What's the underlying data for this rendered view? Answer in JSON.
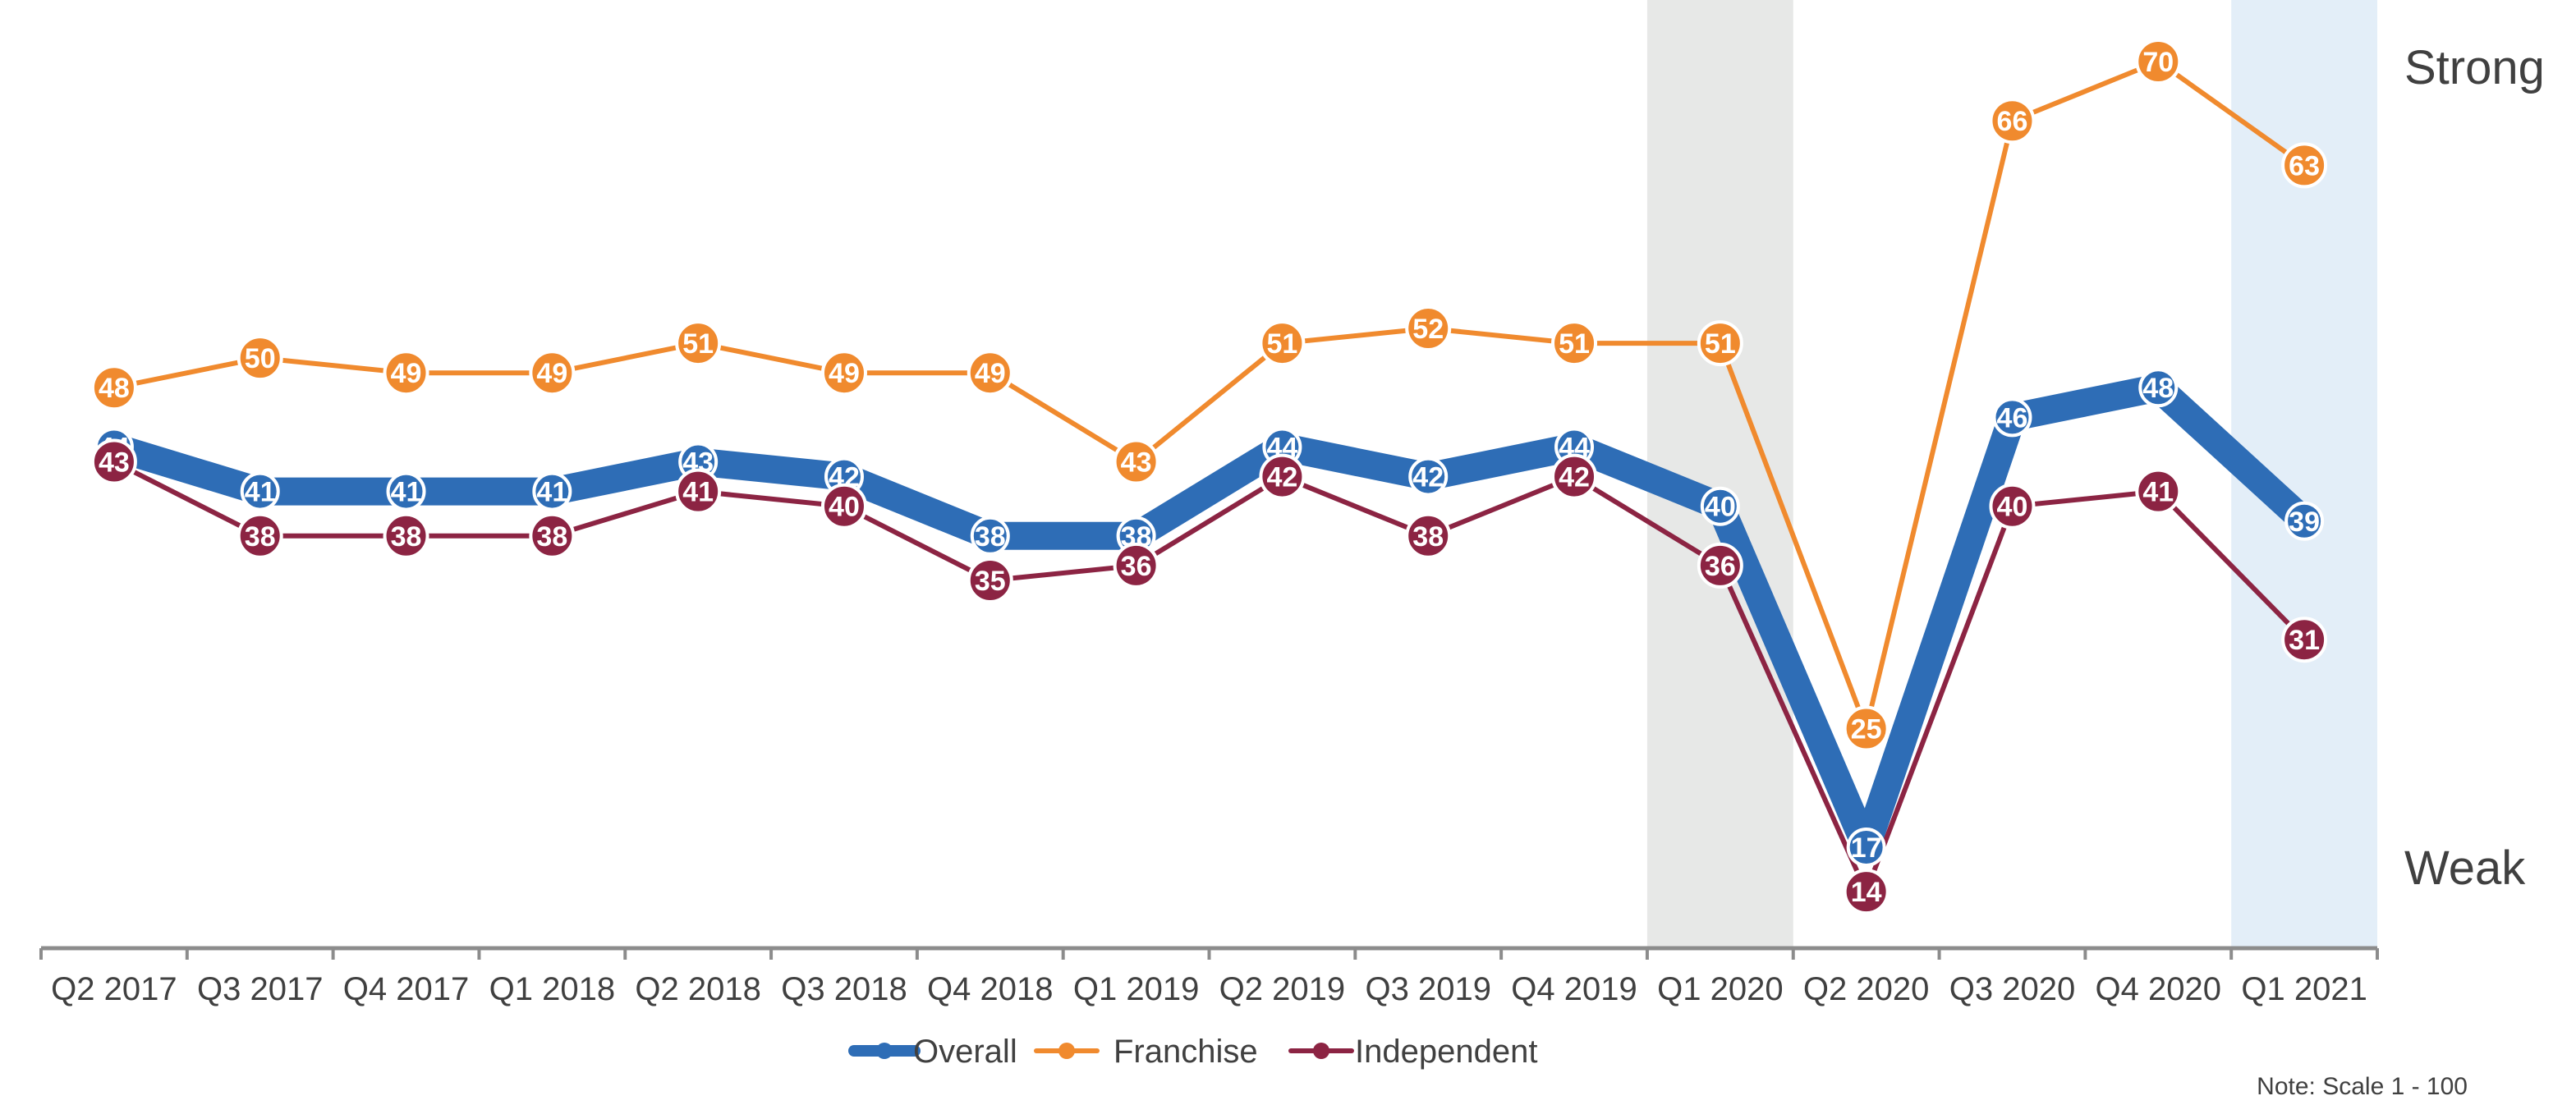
{
  "chart_data": {
    "type": "line",
    "title": "",
    "xlabel": "",
    "ylabel": "",
    "categories": [
      "Q2 2017",
      "Q3 2017",
      "Q4 2017",
      "Q1 2018",
      "Q2 2018",
      "Q3 2018",
      "Q4 2018",
      "Q1 2019",
      "Q2 2019",
      "Q3 2019",
      "Q4 2019",
      "Q1 2020",
      "Q2 2020",
      "Q3 2020",
      "Q4 2020",
      "Q1 2021"
    ],
    "ylim": [
      0,
      100
    ],
    "grid": false,
    "legend_position": "bottom",
    "series": [
      {
        "name": "Overall",
        "color": "#2E6DB6",
        "values": [
          44,
          41,
          41,
          41,
          43,
          42,
          38,
          38,
          44,
          42,
          44,
          40,
          17,
          46,
          48,
          39
        ]
      },
      {
        "name": "Franchise",
        "color": "#F08A2E",
        "values": [
          48,
          50,
          49,
          49,
          51,
          49,
          49,
          43,
          51,
          52,
          51,
          51,
          25,
          66,
          70,
          63
        ]
      },
      {
        "name": "Independent",
        "color": "#8C2443",
        "values": [
          43,
          38,
          38,
          38,
          41,
          40,
          35,
          36,
          42,
          38,
          42,
          36,
          14,
          40,
          41,
          31
        ]
      }
    ],
    "highlight_bands": [
      {
        "category": "Q1 2020",
        "color": "#E7E8E7"
      },
      {
        "category": "Q1 2021",
        "color": "#E3EEF8"
      }
    ],
    "annotations": {
      "top": "Strong",
      "bottom": "Weak"
    },
    "note": "Note: Scale 1 - 100"
  }
}
